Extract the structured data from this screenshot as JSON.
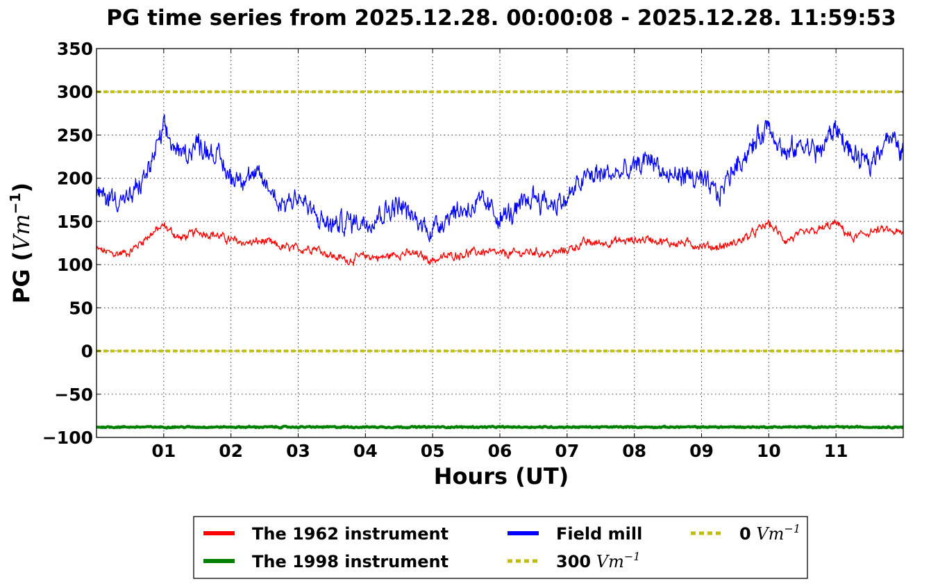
{
  "chart_data": {
    "type": "line",
    "title": "PG time series from 2025.12.28. 00:00:08 - 2025.12.28. 11:59:53",
    "xlabel": "Hours (UT)",
    "ylabel_prefix": "PG (",
    "ylabel_unit": "Vm",
    "ylabel_sup": "−1",
    "ylabel_suffix": ")",
    "xlim": [
      0,
      12
    ],
    "ylim": [
      -100,
      350
    ],
    "grid": true,
    "xticks": [
      {
        "value": 1,
        "label": "01"
      },
      {
        "value": 2,
        "label": "02"
      },
      {
        "value": 3,
        "label": "03"
      },
      {
        "value": 4,
        "label": "04"
      },
      {
        "value": 5,
        "label": "05"
      },
      {
        "value": 6,
        "label": "06"
      },
      {
        "value": 7,
        "label": "07"
      },
      {
        "value": 8,
        "label": "08"
      },
      {
        "value": 9,
        "label": "09"
      },
      {
        "value": 10,
        "label": "10"
      },
      {
        "value": 11,
        "label": "11"
      }
    ],
    "yticks": [
      {
        "value": 350,
        "label": "350"
      },
      {
        "value": 300,
        "label": "300"
      },
      {
        "value": 250,
        "label": "250"
      },
      {
        "value": 200,
        "label": "200"
      },
      {
        "value": 150,
        "label": "150"
      },
      {
        "value": 100,
        "label": "100"
      },
      {
        "value": 50,
        "label": "50"
      },
      {
        "value": 0,
        "label": "0"
      },
      {
        "value": -50,
        "label": "−50"
      },
      {
        "value": -100,
        "label": "−100"
      }
    ],
    "legend_placement": "bottom-center",
    "series": [
      {
        "name": "The 1962 instrument",
        "color": "#ff0000",
        "x": [
          0,
          0.25,
          0.5,
          0.75,
          1,
          1.25,
          1.5,
          1.75,
          2,
          2.25,
          2.5,
          2.75,
          3,
          3.25,
          3.5,
          3.75,
          4,
          4.25,
          4.5,
          4.75,
          5,
          5.25,
          5.5,
          5.75,
          6,
          6.25,
          6.5,
          6.75,
          7,
          7.25,
          7.5,
          7.75,
          8,
          8.25,
          8.5,
          8.75,
          9,
          9.25,
          9.5,
          9.75,
          10,
          10.25,
          10.5,
          10.75,
          11,
          11.25,
          11.5,
          11.75,
          12
        ],
        "values": [
          118,
          112,
          115,
          132,
          145,
          130,
          138,
          135,
          128,
          125,
          127,
          120,
          118,
          120,
          110,
          105,
          110,
          108,
          113,
          112,
          105,
          110,
          113,
          115,
          112,
          113,
          115,
          112,
          117,
          125,
          125,
          127,
          128,
          130,
          125,
          125,
          122,
          120,
          125,
          135,
          148,
          128,
          135,
          140,
          148,
          130,
          138,
          140,
          135
        ]
      },
      {
        "name": "The 1998 instrument",
        "color": "#008000",
        "x": [
          0,
          12
        ],
        "values": [
          -88,
          -88
        ]
      },
      {
        "name": "Field mill",
        "color": "#0000ff",
        "x": [
          0,
          0.25,
          0.5,
          0.75,
          1,
          1.25,
          1.5,
          1.75,
          2,
          2.25,
          2.5,
          2.75,
          3,
          3.25,
          3.5,
          3.75,
          4,
          4.25,
          4.5,
          4.75,
          5,
          5.25,
          5.5,
          5.75,
          6,
          6.25,
          6.5,
          6.75,
          7,
          7.25,
          7.5,
          7.75,
          8,
          8.25,
          8.5,
          8.75,
          9,
          9.25,
          9.5,
          9.75,
          10,
          10.25,
          10.5,
          10.75,
          11,
          11.25,
          11.5,
          11.75,
          12
        ],
        "values": [
          180,
          178,
          175,
          205,
          255,
          225,
          240,
          230,
          200,
          205,
          195,
          170,
          180,
          155,
          145,
          150,
          150,
          160,
          170,
          150,
          140,
          160,
          165,
          170,
          155,
          160,
          180,
          170,
          175,
          200,
          205,
          205,
          210,
          225,
          200,
          205,
          195,
          180,
          215,
          235,
          265,
          225,
          240,
          230,
          260,
          225,
          215,
          250,
          230
        ]
      },
      {
        "name": "300",
        "color": "#bfbf00",
        "style": "dotted",
        "x": [
          0,
          12
        ],
        "values": [
          300,
          300
        ]
      },
      {
        "name": "0",
        "color": "#bfbf00",
        "style": "dotted",
        "x": [
          0,
          12
        ],
        "values": [
          0,
          0
        ]
      }
    ],
    "legend": [
      {
        "label": "The 1962 instrument",
        "unit": "",
        "sup": "",
        "color": "#ff0000",
        "style": "solid"
      },
      {
        "label": "The 1998 instrument",
        "unit": "",
        "sup": "",
        "color": "#008000",
        "style": "solid"
      },
      {
        "label": "Field mill",
        "unit": "",
        "sup": "",
        "color": "#0000ff",
        "style": "solid"
      },
      {
        "label": "300",
        "unit": "Vm",
        "sup": "−1",
        "color": "#bfbf00",
        "style": "dotted"
      },
      {
        "label": "0",
        "unit": "Vm",
        "sup": "−1",
        "color": "#bfbf00",
        "style": "dotted"
      }
    ]
  }
}
